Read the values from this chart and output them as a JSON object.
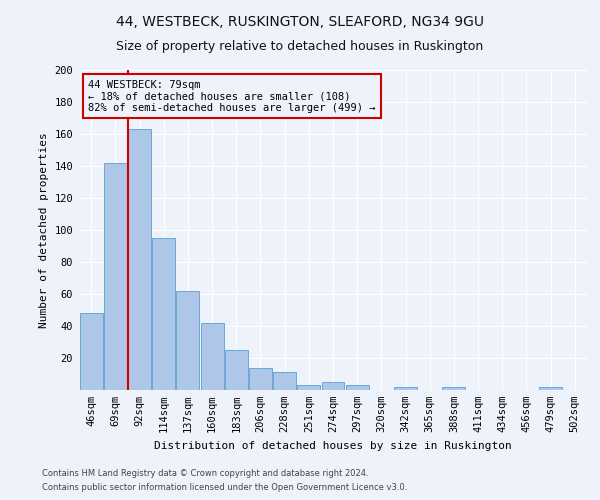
{
  "title1": "44, WESTBECK, RUSKINGTON, SLEAFORD, NG34 9GU",
  "title2": "Size of property relative to detached houses in Ruskington",
  "xlabel": "Distribution of detached houses by size in Ruskington",
  "ylabel": "Number of detached properties",
  "footer1": "Contains HM Land Registry data © Crown copyright and database right 2024.",
  "footer2": "Contains public sector information licensed under the Open Government Licence v3.0.",
  "categories": [
    "46sqm",
    "69sqm",
    "92sqm",
    "114sqm",
    "137sqm",
    "160sqm",
    "183sqm",
    "206sqm",
    "228sqm",
    "251sqm",
    "274sqm",
    "297sqm",
    "320sqm",
    "342sqm",
    "365sqm",
    "388sqm",
    "411sqm",
    "434sqm",
    "456sqm",
    "479sqm",
    "502sqm"
  ],
  "values": [
    48,
    142,
    163,
    95,
    62,
    42,
    25,
    14,
    11,
    3,
    5,
    3,
    0,
    2,
    0,
    2,
    0,
    0,
    0,
    2,
    0
  ],
  "bar_color": "#aec6e8",
  "bar_edge_color": "#5a9fd4",
  "vline_x": 1.5,
  "vline_color": "#cc0000",
  "box_color": "#cc0000",
  "ann_line1": "44 WESTBECK: 79sqm",
  "ann_line2": "← 18% of detached houses are smaller (108)",
  "ann_line3": "82% of semi-detached houses are larger (499) →",
  "ylim": [
    0,
    200
  ],
  "yticks": [
    0,
    20,
    40,
    60,
    80,
    100,
    120,
    140,
    160,
    180,
    200
  ],
  "background_color": "#eef2fb",
  "grid_color": "#ffffff",
  "title_fontsize": 10,
  "subtitle_fontsize": 9,
  "axis_label_fontsize": 8,
  "tick_fontsize": 7.5,
  "ann_fontsize": 7.5,
  "footer_fontsize": 6
}
